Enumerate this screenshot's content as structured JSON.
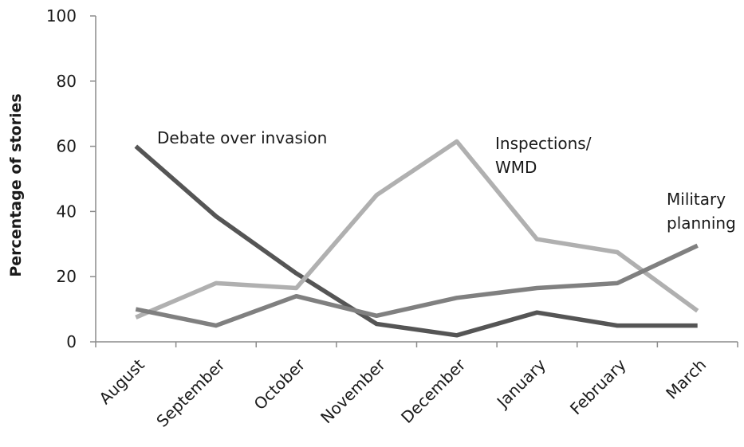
{
  "chart_data": {
    "type": "line",
    "title": "",
    "xlabel": "",
    "ylabel": "Percentage of stories",
    "ylim": [
      0,
      100
    ],
    "yticks": [
      0,
      20,
      40,
      60,
      80,
      100
    ],
    "grid": false,
    "legend": "none",
    "categories": [
      "August",
      "September",
      "October",
      "November",
      "December",
      "January",
      "February",
      "March"
    ],
    "series": [
      {
        "name": "Debate over invasion",
        "color": "#555555",
        "values": [
          60,
          38.5,
          21,
          5.5,
          2,
          9,
          5,
          5
        ]
      },
      {
        "name": "Inspections/ WMD",
        "color": "#b0b0b0",
        "values": [
          7.5,
          18,
          16.5,
          45,
          61.5,
          31.5,
          27.5,
          9.5
        ]
      },
      {
        "name": "Military planning",
        "color": "#808080",
        "values": [
          10,
          5,
          14,
          8,
          13.5,
          16.5,
          18,
          29.5
        ]
      }
    ],
    "annotations": [
      {
        "lines": [
          "Debate over invasion"
        ],
        "series": 0
      },
      {
        "lines": [
          "Inspections/",
          "WMD"
        ],
        "series": 1
      },
      {
        "lines": [
          "Military",
          "planning"
        ],
        "series": 2
      }
    ]
  }
}
